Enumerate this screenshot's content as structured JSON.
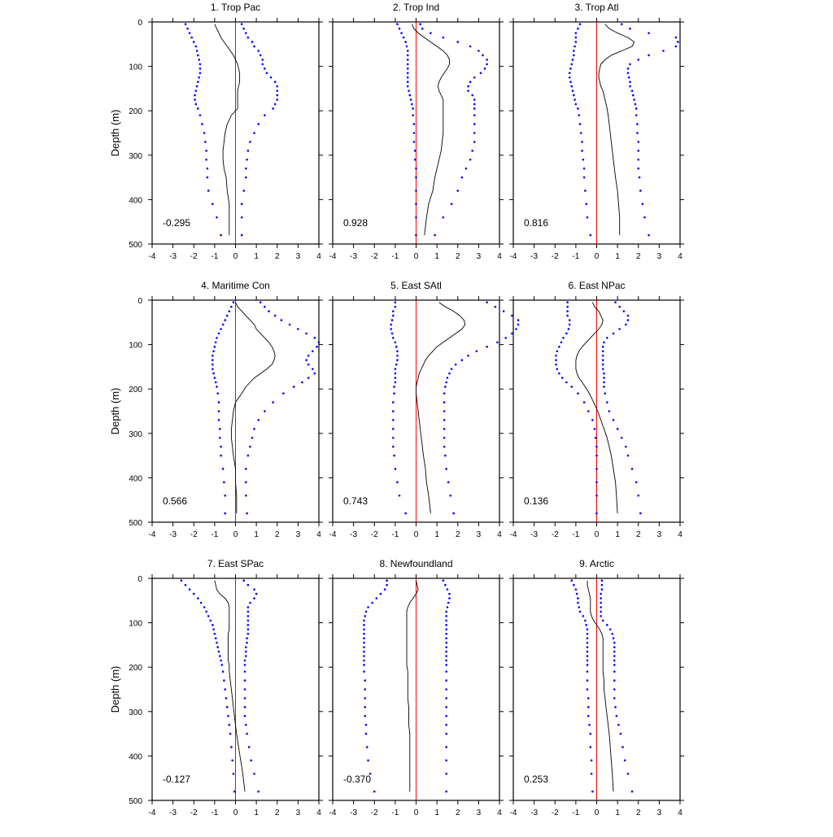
{
  "figure": {
    "y_axis_label": "Depth (m)",
    "x_ticks": [
      "-4",
      "-3",
      "-2",
      "-1",
      "0",
      "1",
      "2",
      "3",
      "4"
    ],
    "y_ticks": [
      "0",
      "100",
      "200",
      "300",
      "400",
      "500"
    ],
    "colors": {
      "mean_line": "#000000",
      "bounds_dots": "#0000ff",
      "zero_line": "#ff0000"
    }
  },
  "chart_data": [
    {
      "type": "line",
      "title": "1. Trop Pac",
      "annotation": "-0.295",
      "xlim": [
        -4,
        4
      ],
      "ylim": [
        500,
        0
      ],
      "ylabel": "Depth (m)",
      "depth": [
        5,
        15,
        25,
        35,
        45,
        55,
        65,
        75,
        85,
        95,
        105,
        115,
        125,
        135,
        145,
        155,
        165,
        175,
        185,
        195,
        210,
        230,
        250,
        270,
        290,
        310,
        330,
        350,
        380,
        410,
        440,
        480
      ],
      "mean": [
        -1.0,
        -0.9,
        -0.8,
        -0.7,
        -0.55,
        -0.4,
        -0.25,
        -0.1,
        0.0,
        0.1,
        0.15,
        0.2,
        0.2,
        0.2,
        0.15,
        0.1,
        0.1,
        0.1,
        0.1,
        0.1,
        -0.2,
        -0.4,
        -0.5,
        -0.55,
        -0.6,
        -0.6,
        -0.55,
        -0.45,
        -0.4,
        -0.3,
        -0.3,
        -0.3
      ],
      "lower": [
        -2.4,
        -2.3,
        -2.2,
        -2.1,
        -2.0,
        -1.9,
        -1.85,
        -1.8,
        -1.75,
        -1.7,
        -1.7,
        -1.7,
        -1.75,
        -1.8,
        -1.85,
        -1.9,
        -1.95,
        -1.95,
        -1.9,
        -1.8,
        -1.7,
        -1.6,
        -1.5,
        -1.45,
        -1.4,
        -1.4,
        -1.35,
        -1.35,
        -1.3,
        -1.1,
        -0.9,
        -0.7
      ],
      "upper": [
        0.3,
        0.4,
        0.5,
        0.6,
        0.8,
        0.9,
        1.1,
        1.2,
        1.3,
        1.3,
        1.4,
        1.5,
        1.7,
        1.9,
        2.0,
        2.0,
        2.0,
        2.0,
        1.9,
        1.8,
        1.4,
        1.1,
        0.9,
        0.7,
        0.6,
        0.55,
        0.5,
        0.5,
        0.4,
        0.3,
        0.3,
        0.3
      ]
    },
    {
      "type": "line",
      "title": "2. Trop Ind",
      "annotation": "0.928",
      "xlim": [
        -4,
        4
      ],
      "ylim": [
        500,
        0
      ],
      "depth": [
        5,
        15,
        25,
        35,
        45,
        55,
        65,
        75,
        85,
        95,
        105,
        115,
        125,
        135,
        145,
        155,
        165,
        175,
        185,
        195,
        210,
        230,
        250,
        270,
        290,
        310,
        330,
        350,
        380,
        410,
        440,
        480
      ],
      "mean": [
        -0.2,
        -0.1,
        0.1,
        0.4,
        0.7,
        1.0,
        1.3,
        1.5,
        1.6,
        1.6,
        1.5,
        1.35,
        1.2,
        1.1,
        1.05,
        1.1,
        1.2,
        1.3,
        1.3,
        1.3,
        1.3,
        1.3,
        1.3,
        1.25,
        1.2,
        1.1,
        1.0,
        0.9,
        0.8,
        0.6,
        0.5,
        0.4
      ],
      "lower": [
        -0.9,
        -0.8,
        -0.7,
        -0.6,
        -0.5,
        -0.45,
        -0.4,
        -0.4,
        -0.4,
        -0.4,
        -0.4,
        -0.4,
        -0.4,
        -0.4,
        -0.4,
        -0.35,
        -0.3,
        -0.25,
        -0.2,
        -0.15,
        -0.15,
        -0.1,
        -0.1,
        -0.1,
        -0.05,
        -0.05,
        0.0,
        0.0,
        0.0,
        0.0,
        0.0,
        0.0
      ],
      "upper": [
        0.2,
        0.3,
        0.7,
        1.3,
        2.0,
        2.6,
        3.0,
        3.2,
        3.4,
        3.4,
        3.3,
        3.1,
        2.8,
        2.6,
        2.5,
        2.5,
        2.7,
        2.8,
        2.8,
        2.8,
        2.8,
        2.8,
        2.8,
        2.8,
        2.7,
        2.6,
        2.4,
        2.2,
        2.0,
        1.7,
        1.3,
        0.9
      ]
    },
    {
      "type": "line",
      "title": "3. Trop Atl",
      "annotation": "0.816",
      "xlim": [
        -4,
        4
      ],
      "ylim": [
        500,
        0
      ],
      "depth": [
        5,
        15,
        25,
        35,
        45,
        55,
        65,
        75,
        85,
        95,
        105,
        115,
        125,
        135,
        145,
        155,
        165,
        175,
        185,
        195,
        210,
        230,
        250,
        270,
        290,
        310,
        330,
        350,
        380,
        410,
        440,
        480
      ],
      "mean": [
        0.4,
        0.6,
        1.0,
        1.5,
        1.8,
        1.7,
        1.2,
        0.7,
        0.4,
        0.2,
        0.15,
        0.1,
        0.1,
        0.15,
        0.2,
        0.3,
        0.35,
        0.4,
        0.45,
        0.5,
        0.55,
        0.6,
        0.65,
        0.7,
        0.75,
        0.8,
        0.85,
        0.9,
        1.0,
        1.05,
        1.1,
        1.1
      ],
      "lower": [
        -0.8,
        -0.9,
        -1.0,
        -1.0,
        -1.0,
        -1.05,
        -1.1,
        -1.1,
        -1.15,
        -1.2,
        -1.25,
        -1.3,
        -1.3,
        -1.25,
        -1.2,
        -1.15,
        -1.1,
        -1.05,
        -1.0,
        -0.9,
        -0.85,
        -0.8,
        -0.75,
        -0.7,
        -0.7,
        -0.65,
        -0.6,
        -0.6,
        -0.55,
        -0.5,
        -0.45,
        -0.3
      ],
      "upper": [
        1.2,
        1.6,
        2.5,
        3.8,
        3.9,
        3.8,
        3.2,
        2.5,
        2.0,
        1.6,
        1.5,
        1.5,
        1.55,
        1.6,
        1.6,
        1.7,
        1.75,
        1.8,
        1.85,
        1.9,
        1.9,
        1.95,
        1.95,
        2.0,
        2.0,
        2.0,
        2.0,
        2.05,
        2.1,
        2.2,
        2.3,
        2.5
      ]
    },
    {
      "type": "line",
      "title": "4. Maritime Con",
      "annotation": "0.566",
      "xlim": [
        -4,
        4
      ],
      "ylim": [
        500,
        0
      ],
      "depth": [
        5,
        15,
        25,
        35,
        45,
        55,
        65,
        75,
        85,
        95,
        105,
        115,
        125,
        135,
        145,
        155,
        165,
        175,
        185,
        195,
        210,
        230,
        250,
        270,
        290,
        310,
        330,
        350,
        380,
        410,
        440,
        480
      ],
      "mean": [
        0.0,
        0.1,
        0.3,
        0.5,
        0.7,
        0.9,
        1.0,
        1.2,
        1.4,
        1.6,
        1.75,
        1.85,
        1.9,
        1.85,
        1.75,
        1.5,
        1.2,
        0.9,
        0.7,
        0.5,
        0.3,
        0.0,
        -0.1,
        -0.15,
        -0.2,
        -0.2,
        -0.15,
        -0.1,
        0.0,
        0.0,
        0.05,
        0.05
      ],
      "lower": [
        -0.1,
        -0.2,
        -0.3,
        -0.4,
        -0.5,
        -0.6,
        -0.7,
        -0.8,
        -0.9,
        -0.95,
        -1.0,
        -1.05,
        -1.1,
        -1.1,
        -1.1,
        -1.1,
        -1.05,
        -1.0,
        -0.95,
        -0.9,
        -0.85,
        -0.8,
        -0.8,
        -0.8,
        -0.75,
        -0.75,
        -0.7,
        -0.7,
        -0.6,
        -0.55,
        -0.5,
        -0.5
      ],
      "upper": [
        1.2,
        1.4,
        1.6,
        1.9,
        2.2,
        2.6,
        3.0,
        3.4,
        3.8,
        4.0,
        3.9,
        3.7,
        3.5,
        3.4,
        3.5,
        3.7,
        3.8,
        3.5,
        3.2,
        2.8,
        2.3,
        1.8,
        1.4,
        1.1,
        0.9,
        0.8,
        0.7,
        0.6,
        0.5,
        0.5,
        0.5,
        0.55
      ]
    },
    {
      "type": "line",
      "title": "5. East SAtl",
      "annotation": "0.743",
      "xlim": [
        -4,
        4
      ],
      "ylim": [
        500,
        0
      ],
      "depth": [
        5,
        15,
        25,
        35,
        45,
        55,
        65,
        75,
        85,
        95,
        105,
        115,
        125,
        135,
        145,
        155,
        165,
        175,
        185,
        195,
        210,
        230,
        250,
        270,
        290,
        310,
        330,
        350,
        380,
        410,
        440,
        480
      ],
      "mean": [
        1.1,
        1.4,
        1.8,
        2.1,
        2.3,
        2.35,
        2.2,
        1.9,
        1.6,
        1.3,
        1.0,
        0.8,
        0.6,
        0.45,
        0.35,
        0.25,
        0.15,
        0.1,
        0.05,
        0.0,
        0.0,
        0.05,
        0.1,
        0.15,
        0.2,
        0.25,
        0.3,
        0.35,
        0.45,
        0.5,
        0.6,
        0.7
      ],
      "lower": [
        -1.0,
        -1.0,
        -1.1,
        -1.1,
        -1.15,
        -1.2,
        -1.2,
        -1.15,
        -1.1,
        -1.0,
        -0.95,
        -0.9,
        -0.9,
        -0.9,
        -0.95,
        -1.0,
        -1.0,
        -1.0,
        -1.0,
        -1.05,
        -1.05,
        -1.1,
        -1.1,
        -1.1,
        -1.1,
        -1.1,
        -1.1,
        -1.05,
        -1.0,
        -0.9,
        -0.8,
        -0.5
      ],
      "upper": [
        3.4,
        3.8,
        4.2,
        4.6,
        4.9,
        4.9,
        4.8,
        4.6,
        4.3,
        3.9,
        3.4,
        2.9,
        2.5,
        2.2,
        1.9,
        1.7,
        1.6,
        1.5,
        1.45,
        1.4,
        1.35,
        1.35,
        1.35,
        1.35,
        1.35,
        1.35,
        1.35,
        1.4,
        1.45,
        1.55,
        1.65,
        1.8
      ]
    },
    {
      "type": "line",
      "title": "6. East NPac",
      "annotation": "0.136",
      "xlim": [
        -4,
        4
      ],
      "ylim": [
        500,
        0
      ],
      "depth": [
        5,
        15,
        25,
        35,
        45,
        55,
        65,
        75,
        85,
        95,
        105,
        115,
        125,
        135,
        145,
        155,
        165,
        175,
        185,
        195,
        210,
        230,
        250,
        270,
        290,
        310,
        330,
        350,
        380,
        410,
        440,
        480
      ],
      "mean": [
        -0.2,
        -0.1,
        0.1,
        0.2,
        0.3,
        0.25,
        0.1,
        -0.1,
        -0.3,
        -0.5,
        -0.7,
        -0.85,
        -0.95,
        -1.0,
        -1.0,
        -1.0,
        -0.95,
        -0.85,
        -0.7,
        -0.55,
        -0.35,
        -0.15,
        0.05,
        0.2,
        0.35,
        0.5,
        0.6,
        0.7,
        0.8,
        0.9,
        0.95,
        1.0
      ],
      "lower": [
        -1.4,
        -1.4,
        -1.4,
        -1.4,
        -1.3,
        -1.3,
        -1.35,
        -1.45,
        -1.6,
        -1.7,
        -1.8,
        -1.9,
        -1.95,
        -1.95,
        -1.95,
        -1.9,
        -1.8,
        -1.65,
        -1.45,
        -1.2,
        -0.9,
        -0.6,
        -0.4,
        -0.2,
        -0.1,
        -0.05,
        0.0,
        0.0,
        0.0,
        0.0,
        0.0,
        0.0
      ],
      "upper": [
        0.9,
        1.1,
        1.3,
        1.5,
        1.5,
        1.4,
        1.1,
        0.8,
        0.5,
        0.35,
        0.3,
        0.3,
        0.3,
        0.3,
        0.3,
        0.3,
        0.35,
        0.35,
        0.35,
        0.35,
        0.4,
        0.5,
        0.6,
        0.8,
        1.0,
        1.2,
        1.4,
        1.5,
        1.7,
        1.9,
        2.0,
        2.1
      ]
    },
    {
      "type": "line",
      "title": "7. East SPac",
      "annotation": "-0.127",
      "xlim": [
        -4,
        4
      ],
      "ylim": [
        500,
        0
      ],
      "depth": [
        5,
        15,
        25,
        35,
        45,
        55,
        65,
        75,
        85,
        95,
        105,
        115,
        125,
        135,
        145,
        155,
        165,
        175,
        185,
        195,
        210,
        230,
        250,
        270,
        290,
        310,
        330,
        350,
        380,
        410,
        440,
        480
      ],
      "mean": [
        -1.0,
        -0.95,
        -0.9,
        -0.75,
        -0.5,
        -0.35,
        -0.3,
        -0.3,
        -0.3,
        -0.3,
        -0.3,
        -0.3,
        -0.35,
        -0.35,
        -0.35,
        -0.35,
        -0.35,
        -0.35,
        -0.35,
        -0.3,
        -0.3,
        -0.25,
        -0.2,
        -0.15,
        -0.1,
        -0.05,
        0.0,
        0.05,
        0.15,
        0.25,
        0.35,
        0.45
      ],
      "lower": [
        -2.6,
        -2.4,
        -2.2,
        -2.0,
        -1.8,
        -1.65,
        -1.5,
        -1.4,
        -1.3,
        -1.2,
        -1.1,
        -1.05,
        -1.0,
        -0.95,
        -0.9,
        -0.85,
        -0.8,
        -0.75,
        -0.7,
        -0.65,
        -0.6,
        -0.55,
        -0.5,
        -0.45,
        -0.4,
        -0.35,
        -0.3,
        -0.25,
        -0.2,
        -0.15,
        -0.1,
        -0.05
      ],
      "upper": [
        0.4,
        0.6,
        0.9,
        1.0,
        0.9,
        0.7,
        0.6,
        0.6,
        0.6,
        0.6,
        0.6,
        0.6,
        0.6,
        0.55,
        0.55,
        0.5,
        0.5,
        0.5,
        0.45,
        0.45,
        0.45,
        0.45,
        0.45,
        0.45,
        0.45,
        0.45,
        0.5,
        0.55,
        0.65,
        0.75,
        0.9,
        1.1
      ]
    },
    {
      "type": "line",
      "title": "8. Newfoundland",
      "annotation": "-0.370",
      "xlim": [
        -4,
        4
      ],
      "ylim": [
        500,
        0
      ],
      "depth": [
        5,
        15,
        25,
        35,
        45,
        55,
        65,
        75,
        85,
        95,
        105,
        115,
        125,
        135,
        145,
        155,
        165,
        175,
        185,
        195,
        210,
        230,
        250,
        270,
        290,
        310,
        330,
        350,
        380,
        410,
        440,
        480
      ],
      "mean": [
        0.0,
        0.05,
        0.1,
        0.0,
        -0.15,
        -0.3,
        -0.4,
        -0.45,
        -0.45,
        -0.45,
        -0.45,
        -0.45,
        -0.45,
        -0.45,
        -0.45,
        -0.45,
        -0.45,
        -0.45,
        -0.45,
        -0.45,
        -0.4,
        -0.4,
        -0.4,
        -0.4,
        -0.35,
        -0.35,
        -0.35,
        -0.3,
        -0.3,
        -0.3,
        -0.3,
        -0.3
      ],
      "lower": [
        -1.4,
        -1.4,
        -1.5,
        -1.7,
        -1.9,
        -2.1,
        -2.3,
        -2.4,
        -2.45,
        -2.5,
        -2.5,
        -2.5,
        -2.5,
        -2.5,
        -2.5,
        -2.5,
        -2.5,
        -2.5,
        -2.5,
        -2.5,
        -2.5,
        -2.45,
        -2.45,
        -2.45,
        -2.45,
        -2.45,
        -2.4,
        -2.4,
        -2.35,
        -2.3,
        -2.2,
        -2.0
      ],
      "upper": [
        1.3,
        1.4,
        1.5,
        1.6,
        1.6,
        1.55,
        1.5,
        1.45,
        1.45,
        1.45,
        1.45,
        1.45,
        1.45,
        1.45,
        1.45,
        1.45,
        1.45,
        1.45,
        1.45,
        1.45,
        1.45,
        1.45,
        1.45,
        1.45,
        1.45,
        1.45,
        1.45,
        1.45,
        1.45,
        1.45,
        1.45,
        1.45
      ]
    },
    {
      "type": "line",
      "title": "9. Arctic",
      "annotation": "0.253",
      "xlim": [
        -4,
        4
      ],
      "ylim": [
        500,
        0
      ],
      "depth": [
        5,
        15,
        25,
        35,
        45,
        55,
        65,
        75,
        85,
        95,
        105,
        115,
        125,
        135,
        145,
        155,
        165,
        175,
        185,
        195,
        210,
        230,
        250,
        270,
        290,
        310,
        330,
        350,
        380,
        410,
        440,
        480
      ],
      "mean": [
        -0.45,
        -0.45,
        -0.4,
        -0.35,
        -0.3,
        -0.3,
        -0.3,
        -0.3,
        -0.25,
        -0.15,
        0.0,
        0.15,
        0.25,
        0.3,
        0.3,
        0.3,
        0.3,
        0.3,
        0.3,
        0.3,
        0.3,
        0.35,
        0.35,
        0.4,
        0.45,
        0.5,
        0.55,
        0.6,
        0.65,
        0.7,
        0.75,
        0.8
      ],
      "lower": [
        -1.2,
        -1.1,
        -1.0,
        -0.95,
        -0.9,
        -0.9,
        -0.85,
        -0.8,
        -0.65,
        -0.55,
        -0.5,
        -0.45,
        -0.45,
        -0.45,
        -0.45,
        -0.45,
        -0.45,
        -0.45,
        -0.45,
        -0.45,
        -0.45,
        -0.45,
        -0.45,
        -0.4,
        -0.4,
        -0.4,
        -0.35,
        -0.3,
        -0.3,
        -0.25,
        -0.25,
        -0.2
      ],
      "upper": [
        0.25,
        0.25,
        0.25,
        0.2,
        0.2,
        0.2,
        0.2,
        0.2,
        0.2,
        0.3,
        0.5,
        0.65,
        0.75,
        0.8,
        0.85,
        0.85,
        0.85,
        0.85,
        0.85,
        0.85,
        0.85,
        0.85,
        0.85,
        0.85,
        0.9,
        0.95,
        1.05,
        1.15,
        1.25,
        1.35,
        1.5,
        1.7
      ]
    }
  ]
}
